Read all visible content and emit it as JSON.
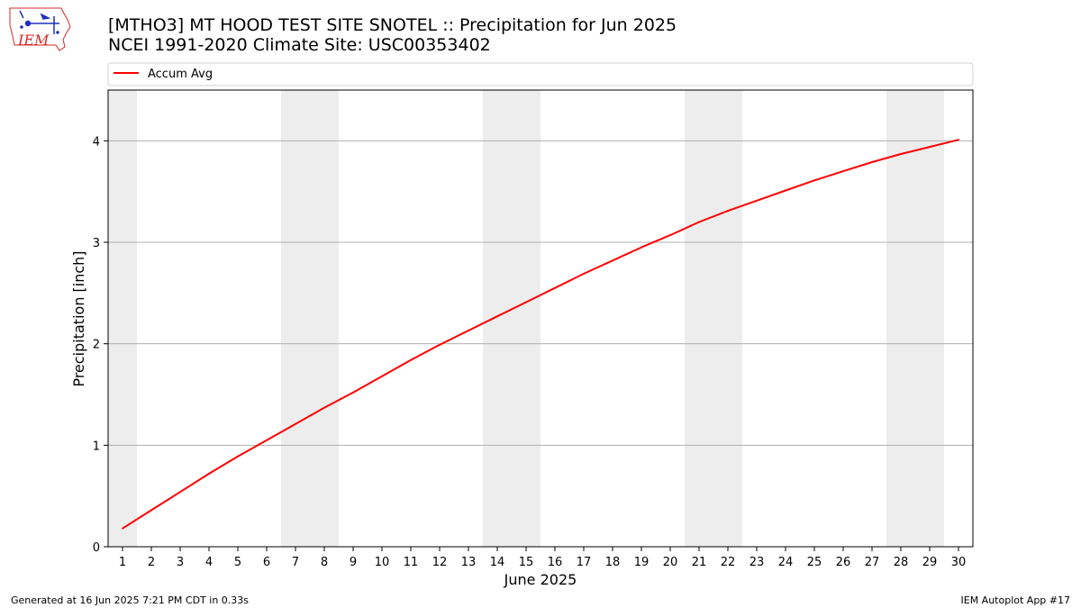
{
  "header": {
    "title_line1": "[MTHO3] MT HOOD TEST SITE SNOTEL :: Precipitation for Jun 2025",
    "title_line2": "NCEI 1991-2020 Climate Site: USC00353402",
    "logo_text": "IEM"
  },
  "footer": {
    "generated": "Generated at 16 Jun 2025 7:21 PM CDT in 0.33s",
    "app": "IEM Autoplot App #17"
  },
  "colors": {
    "line": "#ff0000",
    "weekend_shade": "#ededed",
    "grid": "#b0b0b0",
    "logo_red": "#d62828",
    "logo_blue": "#1f2fbf"
  },
  "chart_data": {
    "type": "line",
    "xlabel": "June 2025",
    "ylabel": "Precipitation [inch]",
    "x": [
      1,
      2,
      3,
      4,
      5,
      6,
      7,
      8,
      9,
      10,
      11,
      12,
      13,
      14,
      15,
      16,
      17,
      18,
      19,
      20,
      21,
      22,
      23,
      24,
      25,
      26,
      27,
      28,
      29,
      30
    ],
    "xlim": [
      0.5,
      30.5
    ],
    "ylim": [
      0,
      4.5
    ],
    "yticks": [
      0,
      1,
      2,
      3,
      4
    ],
    "grid": "horizontal",
    "legend": "top-left",
    "weekend_days": [
      1,
      7,
      8,
      14,
      15,
      21,
      22,
      28,
      29
    ],
    "series": [
      {
        "name": "Accum Avg",
        "values": [
          0.18,
          0.36,
          0.54,
          0.72,
          0.89,
          1.05,
          1.21,
          1.37,
          1.52,
          1.68,
          1.84,
          1.99,
          2.13,
          2.27,
          2.41,
          2.55,
          2.69,
          2.82,
          2.95,
          3.07,
          3.2,
          3.31,
          3.41,
          3.51,
          3.61,
          3.7,
          3.79,
          3.87,
          3.94,
          4.01
        ]
      }
    ]
  }
}
